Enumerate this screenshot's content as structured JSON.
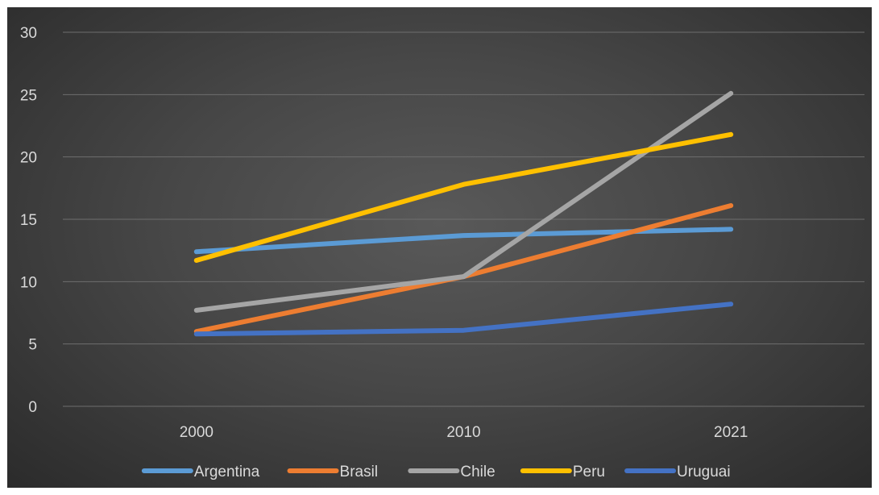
{
  "chart_data": {
    "type": "line",
    "categories": [
      "2000",
      "2010",
      "2021"
    ],
    "ylim": [
      0,
      30
    ],
    "yticks": [
      0,
      5,
      10,
      15,
      20,
      25,
      30
    ],
    "grid": true,
    "legend_position": "bottom",
    "series": [
      {
        "name": "Argentina",
        "values": [
          12.4,
          13.7,
          14.2
        ],
        "color": "#5b9bd5"
      },
      {
        "name": "Brasil",
        "values": [
          6.0,
          10.4,
          16.1
        ],
        "color": "#ed7d31"
      },
      {
        "name": "Chile",
        "values": [
          7.7,
          10.4,
          25.1
        ],
        "color": "#a5a5a5"
      },
      {
        "name": "Peru",
        "values": [
          11.7,
          17.8,
          21.8
        ],
        "color": "#ffc000"
      },
      {
        "name": "Uruguai",
        "values": [
          5.8,
          6.1,
          8.2
        ],
        "color": "#4472c4"
      }
    ],
    "title": "",
    "xlabel": "",
    "ylabel": ""
  },
  "colors": {
    "background": "#474747",
    "gridline": "#6e6e6e",
    "text": "#d9d9d9"
  }
}
